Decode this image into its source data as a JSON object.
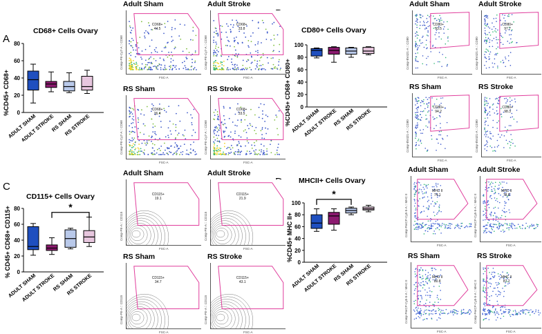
{
  "panels": {
    "A": {
      "label": "A",
      "title": "CD68+ Cells Ovary",
      "ylabel": "%CD45+ CD68+",
      "flow": [
        {
          "title": "Adult Sham",
          "gate_name": "CD68+",
          "gate_value": "44.5",
          "x_axis": "FSC-A",
          "y_axis": "Comp-PE-Cy7-A :: CD68"
        },
        {
          "title": "Adult Stroke",
          "gate_name": "CD68+",
          "gate_value": "33.8",
          "x_axis": "FSC-A",
          "y_axis": "Comp-PE-Cy7-A :: CD68"
        },
        {
          "title": "RS Sham",
          "gate_name": "CD68+",
          "gate_value": "26.4",
          "x_axis": "FSC-A",
          "y_axis": "Comp-PE-Cy7-A :: CD68"
        },
        {
          "title": "RS Stroke",
          "gate_name": "CD68+",
          "gate_value": "33.5",
          "x_axis": "FSC-A",
          "y_axis": "Comp-PE-Cy7-A :: CD68"
        }
      ]
    },
    "B": {
      "label": "B",
      "title": "CD80+ Cells Ovary",
      "ylabel": "%CD45+ CD68+ CD80+",
      "flow": [
        {
          "title": "Adult Sham",
          "gate_name": "CD80+",
          "gate_value": "93.5",
          "x_axis": "FSC-A",
          "y_axis": "Comp-BV421-A :: CD80"
        },
        {
          "title": "Adult Stroke",
          "gate_name": "CD80+",
          "gate_value": "97.7",
          "x_axis": "FSC-A",
          "y_axis": "Comp-BV421-A :: CD80"
        },
        {
          "title": "RS Sham",
          "gate_name": "CD80+",
          "gate_value": "94.2",
          "x_axis": "FSC-A",
          "y_axis": "Comp-BV421-A :: CD80"
        },
        {
          "title": "RS Stroke",
          "gate_name": "CD80+",
          "gate_value": "98.3",
          "x_axis": "FSC-A",
          "y_axis": "Comp-BV421-A :: CD80"
        }
      ]
    },
    "C": {
      "label": "C",
      "title": "CD115+ Cells Ovary",
      "ylabel": "% CD45+ CD68+ CD115+",
      "sig": "*",
      "flow": [
        {
          "title": "Adult Sham",
          "gate_name": "CD115+",
          "gate_value": "19.1",
          "x_axis": "FSC-A",
          "y_axis": "Comp-PE-A :: CD115"
        },
        {
          "title": "Adult Stroke",
          "gate_name": "CD115+",
          "gate_value": "21.9",
          "x_axis": "FSC-A",
          "y_axis": "Comp-PE-A :: CD115"
        },
        {
          "title": "RS Sham",
          "gate_name": "CD115+",
          "gate_value": "34.7",
          "x_axis": "FSC-A",
          "y_axis": "Comp-PE-A :: CD115"
        },
        {
          "title": "RS Stroke",
          "gate_name": "CD115+",
          "gate_value": "43.1",
          "x_axis": "FSC-A",
          "y_axis": "Comp-PE-A :: CD115"
        }
      ]
    },
    "D": {
      "label": "D",
      "title": "MHCII+ Cells Ovary",
      "ylabel": "%CD45+ MHC II+",
      "sig": "*",
      "flow": [
        {
          "title": "Adult Sham",
          "gate_name": "MHC II",
          "gate_value": "74.1",
          "x_axis": "FSC-A",
          "y_axis": "Comp-PerCP-Cy5-5-A :: MHC II"
        },
        {
          "title": "Adult Stroke",
          "gate_name": "MHC II",
          "gate_value": "78.8",
          "x_axis": "FSC-A",
          "y_axis": "Comp-PerCP-Cy5-5-A :: MHC II"
        },
        {
          "title": "RS Sham",
          "gate_name": "MHC II",
          "gate_value": "80.8",
          "x_axis": "FSC-A",
          "y_axis": "Comp-PerCP-Cy5-5-A :: MHC II"
        },
        {
          "title": "RS Stroke",
          "gate_name": "MHC II",
          "gate_value": "87.2",
          "x_axis": "FSC-A",
          "y_axis": "Comp-PerCP-Cy5-5-A :: MHC II"
        }
      ]
    }
  },
  "chart_data": [
    {
      "panel": "A",
      "type": "box",
      "title": "CD68+ Cells Ovary",
      "ylabel": "%CD45+ CD68+",
      "categories": [
        "ADULT SHAM",
        "ADULT STROKE",
        "RS SHAM",
        "RS STROKE"
      ],
      "yticks": [
        0,
        20,
        40,
        60,
        80
      ],
      "ylim": [
        0,
        80
      ],
      "boxes": [
        {
          "min": 11,
          "q1": 26,
          "median": 38,
          "q3": 48,
          "max": 56,
          "color": "#1f4fbf"
        },
        {
          "min": 24,
          "q1": 29,
          "median": 33,
          "q3": 36,
          "max": 47,
          "color": "#8b1a6f"
        },
        {
          "min": 23,
          "q1": 25,
          "median": 30,
          "q3": 36,
          "max": 46,
          "color": "#b9c9ea"
        },
        {
          "min": 22,
          "q1": 26,
          "median": 30,
          "q3": 42,
          "max": 49,
          "color": "#e7c6de"
        }
      ]
    },
    {
      "panel": "B",
      "type": "box",
      "title": "CD80+ Cells Ovary",
      "ylabel": "%CD45+ CD68+ CD80+",
      "categories": [
        "ADULT SHAM",
        "ADULT STROKE",
        "RS SHAM",
        "RS STROKE"
      ],
      "yticks": [
        0,
        20,
        40,
        60,
        80,
        100
      ],
      "ylim": [
        0,
        100
      ],
      "boxes": [
        {
          "min": 79,
          "q1": 82,
          "median": 91,
          "q3": 94,
          "max": 95,
          "color": "#1f4fbf"
        },
        {
          "min": 72,
          "q1": 85,
          "median": 91,
          "q3": 96,
          "max": 97,
          "color": "#8b1a6f"
        },
        {
          "min": 80,
          "q1": 85,
          "median": 90,
          "q3": 95,
          "max": 96,
          "color": "#b9c9ea"
        },
        {
          "min": 84,
          "q1": 86,
          "median": 90,
          "q3": 96,
          "max": 97,
          "color": "#e7c6de"
        }
      ]
    },
    {
      "panel": "C",
      "type": "box",
      "title": "CD115+ Cells Ovary",
      "ylabel": "% CD45+ CD68+ CD115+",
      "categories": [
        "ADULT SHAM",
        "ADULT STROKE",
        "RS SHAM",
        "RS STROKE"
      ],
      "yticks": [
        0,
        20,
        40,
        60,
        80
      ],
      "ylim": [
        0,
        80
      ],
      "boxes": [
        {
          "min": 21,
          "q1": 28,
          "median": 32,
          "q3": 57,
          "max": 61,
          "color": "#1f4fbf"
        },
        {
          "min": 22,
          "q1": 27,
          "median": 30,
          "q3": 34,
          "max": 43,
          "color": "#8b1a6f"
        },
        {
          "min": 29,
          "q1": 31,
          "median": 42,
          "q3": 53,
          "max": 55,
          "color": "#b9c9ea"
        },
        {
          "min": 32,
          "q1": 37,
          "median": 44,
          "q3": 52,
          "max": 69,
          "color": "#e7c6de"
        }
      ],
      "significance": {
        "from": 1,
        "to": 3,
        "label": "*",
        "y": 75
      }
    },
    {
      "panel": "D",
      "type": "box",
      "title": "MHCII+ Cells Ovary",
      "ylabel": "%CD45+ MHC II+",
      "categories": [
        "ADULT SHAM",
        "ADULT STROKE",
        "RS SHAM",
        "RS STROKE"
      ],
      "yticks": [
        0,
        20,
        40,
        60,
        80,
        100
      ],
      "ylim": [
        0,
        100
      ],
      "boxes": [
        {
          "min": 52,
          "q1": 57,
          "median": 66,
          "q3": 80,
          "max": 90,
          "color": "#1f4fbf"
        },
        {
          "min": 54,
          "q1": 64,
          "median": 78,
          "q3": 84,
          "max": 90,
          "color": "#8b1a6f"
        },
        {
          "min": 80,
          "q1": 83,
          "median": 87,
          "q3": 91,
          "max": 93,
          "color": "#b9c9ea"
        },
        {
          "min": 85,
          "q1": 88,
          "median": 90,
          "q3": 93,
          "max": 96,
          "color": "#e7c6de"
        }
      ],
      "significance": {
        "from": 0,
        "to": 2,
        "label": "*",
        "y": 106
      }
    }
  ]
}
